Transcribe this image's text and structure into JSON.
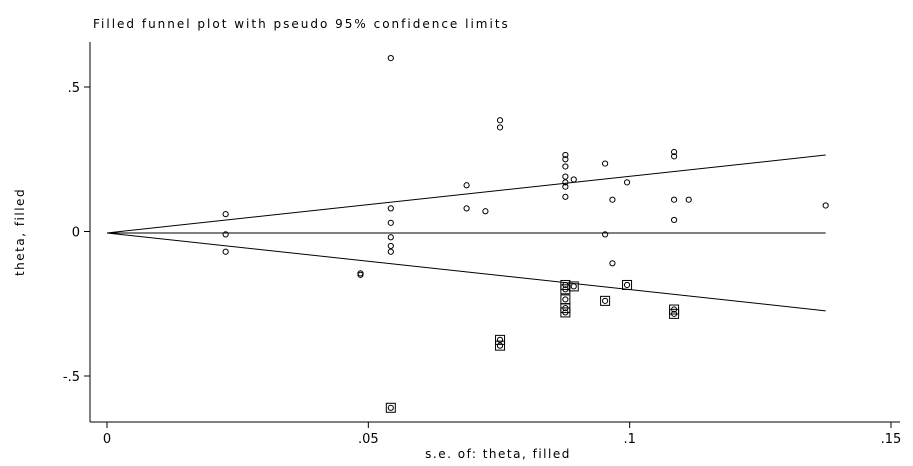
{
  "chart_data": {
    "type": "scatter",
    "title": "Filled funnel plot with pseudo 95% confidence limits",
    "xlabel": "s.e. of: theta, filled",
    "ylabel": "theta, filled",
    "xlim": [
      0,
      0.15
    ],
    "ylim": [
      -0.6,
      0.6
    ],
    "x_ticks": [
      {
        "value": 0,
        "label": "0"
      },
      {
        "value": 0.05,
        "label": ".05"
      },
      {
        "value": 0.1,
        "label": ".1"
      },
      {
        "value": 0.15,
        "label": ".15"
      }
    ],
    "y_ticks": [
      {
        "value": 0.5,
        "label": ".5"
      },
      {
        "value": 0,
        "label": "0"
      },
      {
        "value": -0.5,
        "label": "-.5"
      }
    ],
    "grid": false,
    "legend": "none",
    "pooled_estimate": -0.005,
    "confidence_slope": 1.96,
    "confidence_x_range": [
      0,
      0.1375
    ],
    "series": [
      {
        "marker": "circle",
        "points": [
          [
            0.0227,
            0.06
          ],
          [
            0.0227,
            -0.01
          ],
          [
            0.0227,
            -0.07
          ],
          [
            0.0485,
            -0.145
          ],
          [
            0.0485,
            -0.15
          ],
          [
            0.0543,
            0.6
          ],
          [
            0.0543,
            0.08
          ],
          [
            0.0543,
            0.03
          ],
          [
            0.0543,
            -0.02
          ],
          [
            0.0543,
            -0.05
          ],
          [
            0.0543,
            -0.07
          ],
          [
            0.0688,
            0.16
          ],
          [
            0.0688,
            0.08
          ],
          [
            0.0724,
            0.07
          ],
          [
            0.0752,
            0.385
          ],
          [
            0.0752,
            0.36
          ],
          [
            0.0877,
            0.265
          ],
          [
            0.0877,
            0.25
          ],
          [
            0.0877,
            0.225
          ],
          [
            0.0877,
            0.19
          ],
          [
            0.0877,
            0.17
          ],
          [
            0.0877,
            0.155
          ],
          [
            0.0877,
            0.12
          ],
          [
            0.0893,
            0.18
          ],
          [
            0.0953,
            0.235
          ],
          [
            0.0953,
            -0.01
          ],
          [
            0.0967,
            0.11
          ],
          [
            0.0967,
            -0.11
          ],
          [
            0.0995,
            0.17
          ],
          [
            0.1085,
            0.275
          ],
          [
            0.1085,
            0.26
          ],
          [
            0.1085,
            0.11
          ],
          [
            0.1085,
            0.04
          ],
          [
            0.1113,
            0.11
          ],
          [
            0.1375,
            0.09
          ]
        ]
      },
      {
        "marker": "square",
        "points": [
          [
            0.0543,
            -0.61
          ],
          [
            0.0752,
            -0.375
          ],
          [
            0.0752,
            -0.395
          ],
          [
            0.0877,
            -0.185
          ],
          [
            0.0877,
            -0.2
          ],
          [
            0.0877,
            -0.235
          ],
          [
            0.0877,
            -0.265
          ],
          [
            0.0877,
            -0.28
          ],
          [
            0.0893,
            -0.19
          ],
          [
            0.0953,
            -0.24
          ],
          [
            0.0995,
            -0.185
          ],
          [
            0.1085,
            -0.27
          ],
          [
            0.1085,
            -0.285
          ]
        ]
      }
    ]
  }
}
